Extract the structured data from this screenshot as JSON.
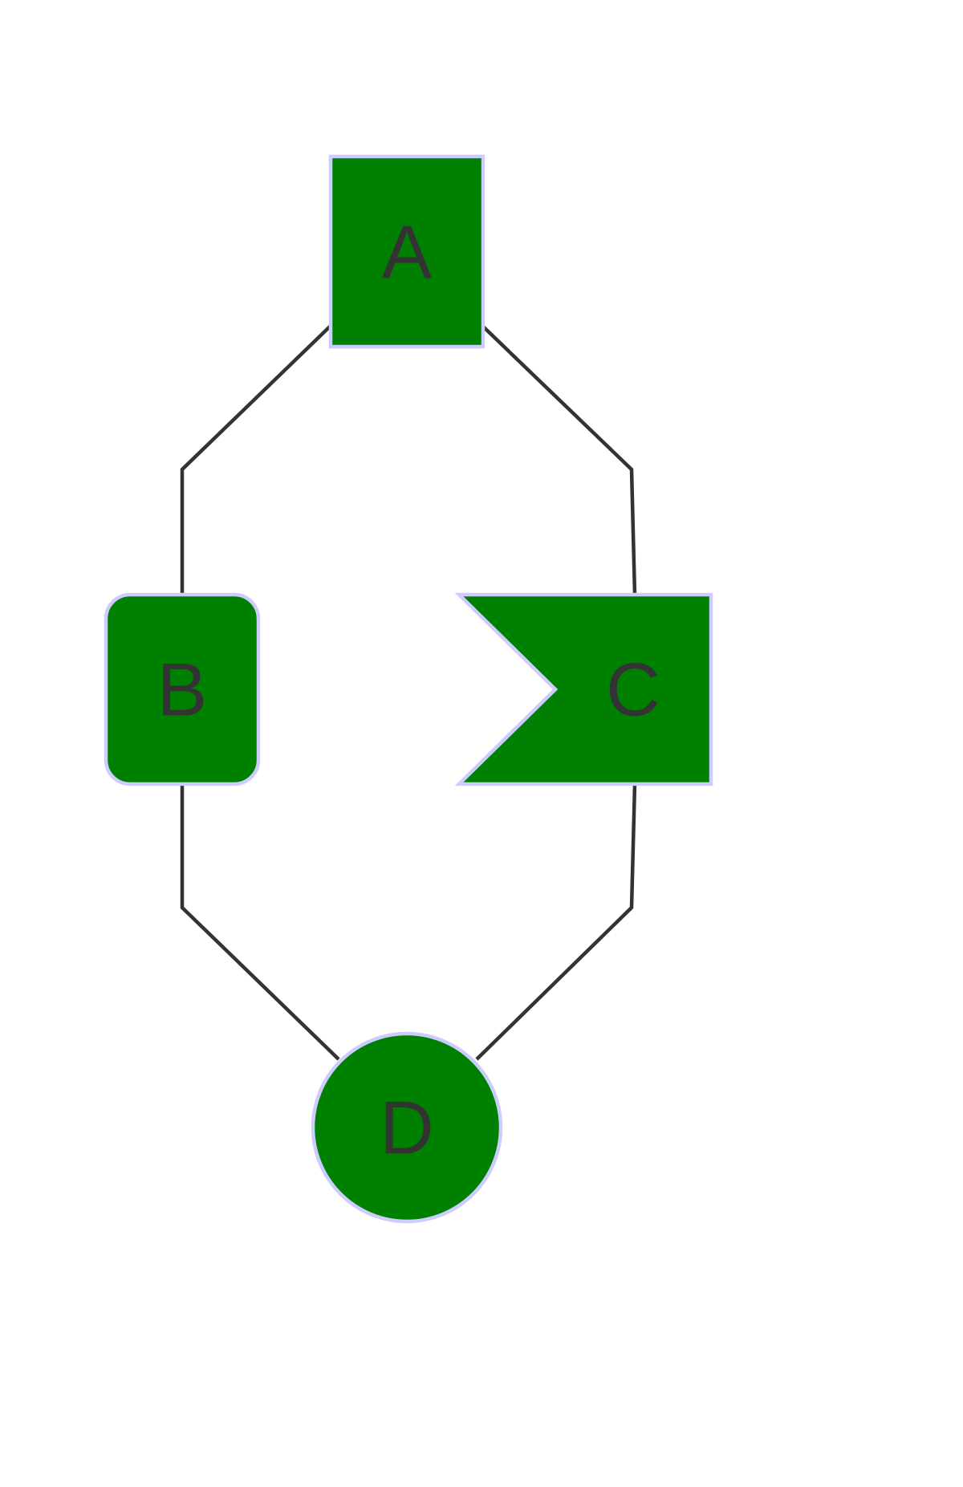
{
  "diagram": {
    "type": "flowchart",
    "colors": {
      "node_fill": "#008000",
      "node_stroke": "#ccccff",
      "edge": "#333333",
      "label": "#333333",
      "background": "#ffffff"
    },
    "nodes": [
      {
        "id": "A",
        "label": "A",
        "shape": "square"
      },
      {
        "id": "B",
        "label": "B",
        "shape": "rounded-rectangle"
      },
      {
        "id": "C",
        "label": "C",
        "shape": "flag"
      },
      {
        "id": "D",
        "label": "D",
        "shape": "circle"
      }
    ],
    "edges": [
      {
        "from": "A",
        "to": "B"
      },
      {
        "from": "A",
        "to": "C"
      },
      {
        "from": "B",
        "to": "D"
      },
      {
        "from": "C",
        "to": "D"
      }
    ]
  }
}
